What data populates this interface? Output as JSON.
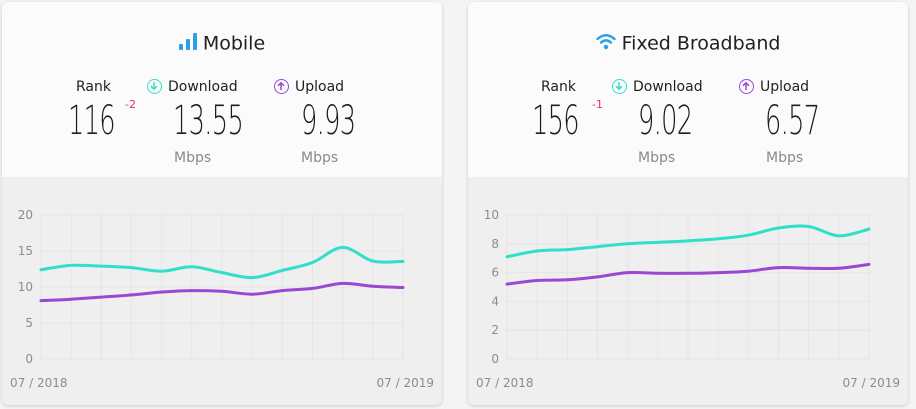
{
  "colors": {
    "download": "#2fe0c8",
    "upload": "#9b47d6",
    "wifi": "#2c9fe6",
    "delta": "#e8305a"
  },
  "mobile": {
    "icon": "signal-bars-icon",
    "title": "Mobile",
    "rank_label": "Rank",
    "download_label": "Download",
    "upload_label": "Upload",
    "rank": "116",
    "rank_change": "-2",
    "download": "13.55",
    "upload": "9.93",
    "unit": "Mbps"
  },
  "fixed": {
    "icon": "wifi-icon",
    "title": "Fixed Broadband",
    "rank_label": "Rank",
    "download_label": "Download",
    "upload_label": "Upload",
    "rank": "156",
    "rank_change": "-1",
    "download": "9.02",
    "upload": "6.57",
    "unit": "Mbps"
  },
  "chart_data": [
    {
      "type": "line",
      "x_start_label": "07 / 2018",
      "x_end_label": "07 / 2019",
      "ylim": [
        0,
        20
      ],
      "yticks": [
        0,
        5,
        10,
        15,
        20
      ],
      "grid": true,
      "x": [
        "07/2018",
        "08/2018",
        "09/2018",
        "10/2018",
        "11/2018",
        "12/2018",
        "01/2019",
        "02/2019",
        "03/2019",
        "04/2019",
        "05/2019",
        "06/2019",
        "07/2019"
      ],
      "series": [
        {
          "key": "download",
          "values": [
            12.4,
            13.0,
            12.9,
            12.7,
            12.2,
            12.8,
            12.0,
            11.3,
            12.3,
            13.4,
            15.5,
            13.6,
            13.55
          ]
        },
        {
          "key": "upload",
          "values": [
            8.1,
            8.3,
            8.6,
            8.9,
            9.3,
            9.5,
            9.4,
            9.0,
            9.5,
            9.8,
            10.5,
            10.1,
            9.93
          ]
        }
      ]
    },
    {
      "type": "line",
      "x_start_label": "07 / 2018",
      "x_end_label": "07 / 2019",
      "ylim": [
        0,
        10
      ],
      "yticks": [
        0,
        2,
        4,
        6,
        8,
        10
      ],
      "grid": true,
      "x": [
        "07/2018",
        "08/2018",
        "09/2018",
        "10/2018",
        "11/2018",
        "12/2018",
        "01/2019",
        "02/2019",
        "03/2019",
        "04/2019",
        "05/2019",
        "06/2019",
        "07/2019"
      ],
      "series": [
        {
          "key": "download",
          "values": [
            7.1,
            7.5,
            7.6,
            7.8,
            8.0,
            8.1,
            8.2,
            8.35,
            8.6,
            9.1,
            9.2,
            8.55,
            9.02
          ]
        },
        {
          "key": "upload",
          "values": [
            5.2,
            5.45,
            5.5,
            5.7,
            6.0,
            5.95,
            5.95,
            6.0,
            6.1,
            6.35,
            6.3,
            6.3,
            6.57
          ]
        }
      ]
    }
  ]
}
